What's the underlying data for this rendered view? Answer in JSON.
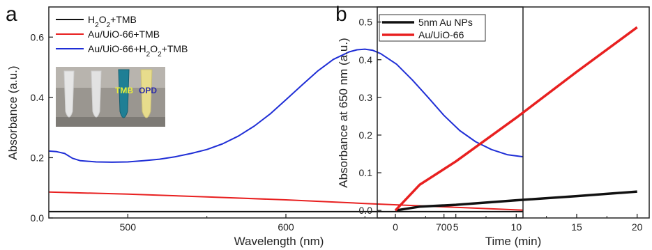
{
  "panels": {
    "a_letter": "a",
    "b_letter": "b"
  },
  "photo": {
    "tmb_label": "TMB",
    "opd_label": "OPD",
    "tmb_color": "#e8ee3a",
    "opd_color": "#2c2ca8"
  },
  "chart_data": [
    {
      "type": "line",
      "panel": "a",
      "xlabel": "Wavelength (nm)",
      "ylabel": "Absorbance (a.u.)",
      "xlim": [
        450,
        750
      ],
      "ylim": [
        0.0,
        0.7
      ],
      "xticks": [
        500,
        600,
        700
      ],
      "yticks": [
        0.0,
        0.2,
        0.4,
        0.6
      ],
      "xtick_labels": [
        "500",
        "600",
        "700"
      ],
      "ytick_labels": [
        "0.0",
        "0.2",
        "0.4",
        "0.6"
      ],
      "legend_position": "top-left",
      "series": [
        {
          "name_parts": [
            "H",
            "2",
            "O",
            "2",
            "+TMB"
          ],
          "color": "#111111",
          "x": [
            450,
            500,
            550,
            600,
            650,
            700,
            750
          ],
          "y": [
            0.021,
            0.021,
            0.021,
            0.021,
            0.021,
            0.021,
            0.021
          ]
        },
        {
          "name": "Au/UiO-66+TMB",
          "color": "#e82020",
          "x": [
            450,
            500,
            550,
            600,
            650,
            700,
            750
          ],
          "y": [
            0.086,
            0.079,
            0.07,
            0.06,
            0.048,
            0.037,
            0.026
          ]
        },
        {
          "name_parts": [
            "Au/UiO-66+H",
            "2",
            "O",
            "2",
            "+TMB"
          ],
          "color": "#1f2ed6",
          "x": [
            450,
            455,
            460,
            465,
            470,
            480,
            490,
            500,
            510,
            520,
            530,
            540,
            550,
            560,
            570,
            580,
            590,
            600,
            610,
            620,
            630,
            640,
            645,
            650,
            655,
            660,
            670,
            680,
            690,
            700,
            710,
            720,
            730,
            740,
            750
          ],
          "y": [
            0.222,
            0.22,
            0.214,
            0.198,
            0.19,
            0.186,
            0.185,
            0.186,
            0.19,
            0.195,
            0.203,
            0.214,
            0.227,
            0.246,
            0.272,
            0.305,
            0.345,
            0.392,
            0.44,
            0.487,
            0.526,
            0.551,
            0.558,
            0.56,
            0.556,
            0.545,
            0.51,
            0.458,
            0.4,
            0.34,
            0.29,
            0.253,
            0.227,
            0.21,
            0.203
          ]
        }
      ]
    },
    {
      "type": "line",
      "panel": "b",
      "xlabel": "Time (min)",
      "ylabel": "Absorbance at 650 nm (a.u.)",
      "xlim": [
        -1.5,
        21
      ],
      "ylim": [
        -0.02,
        0.54
      ],
      "xticks": [
        0,
        5,
        10,
        15,
        20
      ],
      "yticks": [
        0.0,
        0.1,
        0.2,
        0.3,
        0.4,
        0.5
      ],
      "xtick_labels": [
        "0",
        "5",
        "10",
        "15",
        "20"
      ],
      "ytick_labels": [
        "0.0",
        "0.1",
        "0.2",
        "0.3",
        "0.4",
        "0.5"
      ],
      "legend_position": "top-left",
      "series": [
        {
          "name": "5nm  Au NPs",
          "color": "#111111",
          "x": [
            0,
            2,
            5,
            10,
            15,
            20
          ],
          "y": [
            0.0,
            0.01,
            0.015,
            0.027,
            0.038,
            0.05
          ]
        },
        {
          "name": "Au/UiO-66",
          "color": "#e82020",
          "x": [
            0,
            2,
            5,
            10,
            15,
            20
          ],
          "y": [
            0.0,
            0.068,
            0.13,
            0.246,
            0.368,
            0.486
          ]
        }
      ]
    }
  ]
}
